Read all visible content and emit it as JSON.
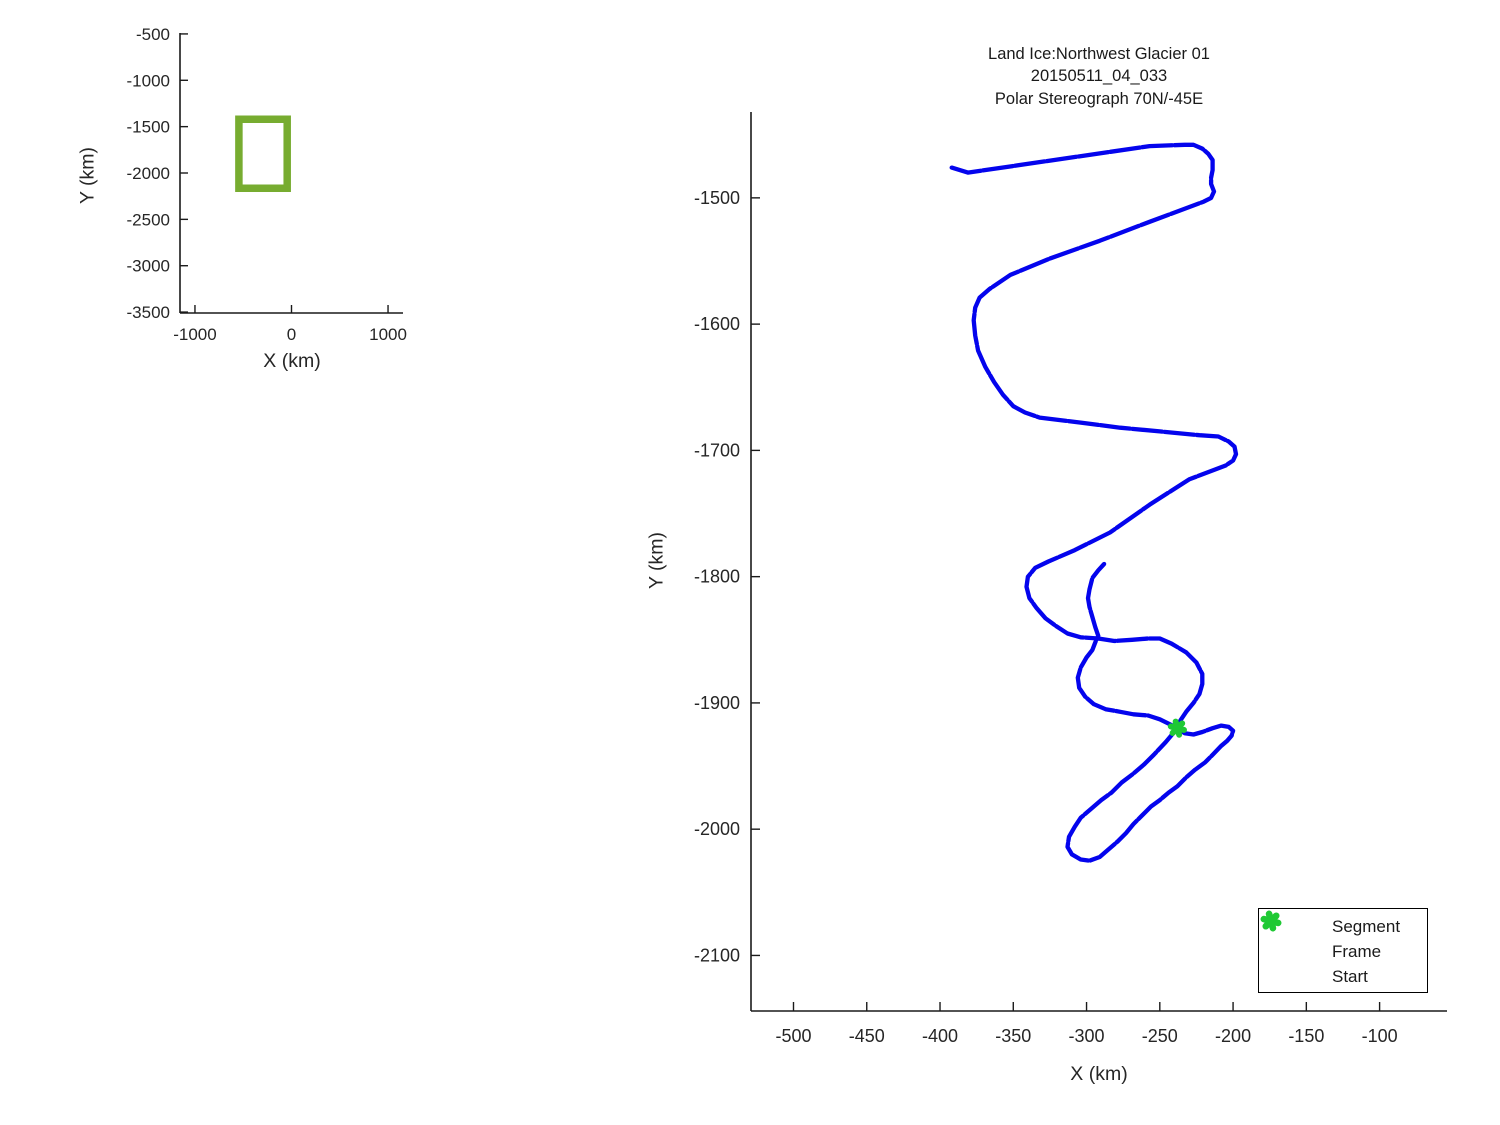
{
  "colors": {
    "track_blue": "#0404ed",
    "frame_red": "#ee0000",
    "start_green": "#1fc934",
    "coverage_green": "#77ac30",
    "axis": "#1a1a1a",
    "tick_text": "#262626"
  },
  "chart_data": [
    {
      "id": "overview",
      "type": "line",
      "xlabel": "X (km)",
      "ylabel": "Y (km)",
      "xlim": [
        -1155,
        1155
      ],
      "ylim": [
        -3510,
        -490
      ],
      "x_ticks": [
        "-1000",
        "0",
        "1000"
      ],
      "x_tick_vals": [
        -1000,
        0,
        1000
      ],
      "y_ticks": [
        "-500",
        "-1000",
        "-1500",
        "-2000",
        "-2500",
        "-3000",
        "-3500"
      ],
      "y_tick_vals": [
        -500,
        -1000,
        -1500,
        -2000,
        -2500,
        -3000,
        -3500
      ],
      "series": [
        {
          "name": "coverage-extent-box",
          "closed": true,
          "linewidth": 7.5,
          "points": [
            [
              -545,
              -1420
            ],
            [
              -45,
              -1420
            ],
            [
              -45,
              -2165
            ],
            [
              -545,
              -2165
            ]
          ]
        }
      ]
    },
    {
      "id": "flight-track",
      "type": "line",
      "title_lines": [
        "Land Ice:Northwest Glacier 01",
        "20150511_04_033",
        "Polar Stereograph 70N/-45E"
      ],
      "xlabel": "X (km)",
      "ylabel": "Y (km)",
      "xlim": [
        -529,
        -54
      ],
      "ylim": [
        -2144,
        -1432
      ],
      "x_ticks": [
        "-500",
        "-450",
        "-400",
        "-350",
        "-300",
        "-250",
        "-200",
        "-150",
        "-100"
      ],
      "x_tick_vals": [
        -500,
        -450,
        -400,
        -350,
        -300,
        -250,
        -200,
        -150,
        -100
      ],
      "y_ticks": [
        "-1500",
        "-1600",
        "-1700",
        "-1800",
        "-1900",
        "-2000",
        "-2100"
      ],
      "y_tick_vals": [
        -1500,
        -1600,
        -1700,
        -1800,
        -1900,
        -2000,
        -2100
      ],
      "start_km": [
        -238,
        -1920
      ],
      "track_km": [
        [
          -392,
          -1476
        ],
        [
          -381,
          -1480
        ],
        [
          -257,
          -1459
        ],
        [
          -233,
          -1458
        ],
        [
          -227,
          -1458
        ],
        [
          -221,
          -1461
        ],
        [
          -217,
          -1465
        ],
        [
          -214,
          -1470
        ],
        [
          -214,
          -1478
        ],
        [
          -215,
          -1484
        ],
        [
          -215,
          -1489
        ],
        [
          -213,
          -1495
        ],
        [
          -215,
          -1500
        ],
        [
          -220,
          -1503
        ],
        [
          -257,
          -1519
        ],
        [
          -291,
          -1534
        ],
        [
          -325,
          -1548
        ],
        [
          -352,
          -1561
        ],
        [
          -366,
          -1572
        ],
        [
          -373,
          -1579
        ],
        [
          -376,
          -1587
        ],
        [
          -377,
          -1597
        ],
        [
          -376,
          -1609
        ],
        [
          -374,
          -1621
        ],
        [
          -369,
          -1634
        ],
        [
          -363,
          -1646
        ],
        [
          -357,
          -1656
        ],
        [
          -350,
          -1665
        ],
        [
          -342,
          -1670
        ],
        [
          -332,
          -1674
        ],
        [
          -304,
          -1678
        ],
        [
          -277,
          -1682
        ],
        [
          -250,
          -1685
        ],
        [
          -223,
          -1688
        ],
        [
          -210,
          -1689
        ],
        [
          -203,
          -1693
        ],
        [
          -199,
          -1697
        ],
        [
          -198,
          -1703
        ],
        [
          -200,
          -1708
        ],
        [
          -205,
          -1712
        ],
        [
          -230,
          -1723
        ],
        [
          -257,
          -1743
        ],
        [
          -284,
          -1765
        ],
        [
          -308,
          -1779
        ],
        [
          -326,
          -1788
        ],
        [
          -335,
          -1793
        ],
        [
          -340,
          -1800
        ],
        [
          -341,
          -1808
        ],
        [
          -339,
          -1817
        ],
        [
          -334,
          -1825
        ],
        [
          -328,
          -1833
        ],
        [
          -321,
          -1839
        ],
        [
          -313,
          -1845
        ],
        [
          -304,
          -1848
        ],
        [
          -292,
          -1849
        ],
        [
          -281,
          -1851
        ],
        [
          -269,
          -1850
        ],
        [
          -258,
          -1849
        ],
        [
          -250,
          -1849
        ],
        [
          -242,
          -1853
        ],
        [
          -232,
          -1860
        ],
        [
          -225,
          -1868
        ],
        [
          -221,
          -1877
        ],
        [
          -221,
          -1885
        ],
        [
          -223,
          -1893
        ],
        [
          -227,
          -1900
        ],
        [
          -232,
          -1907
        ],
        [
          -236,
          -1914
        ],
        [
          -238,
          -1920
        ],
        [
          -246,
          -1931
        ],
        [
          -254,
          -1941
        ],
        [
          -261,
          -1949
        ],
        [
          -268,
          -1956
        ],
        [
          -276,
          -1963
        ],
        [
          -283,
          -1971
        ],
        [
          -290,
          -1977
        ],
        [
          -297,
          -1984
        ],
        [
          -304,
          -1991
        ],
        [
          -308,
          -1998
        ],
        [
          -312,
          -2006
        ],
        [
          -313,
          -2014
        ],
        [
          -310,
          -2020
        ],
        [
          -304,
          -2024
        ],
        [
          -298,
          -2025
        ],
        [
          -291,
          -2022
        ],
        [
          -285,
          -2016
        ],
        [
          -279,
          -2010
        ],
        [
          -273,
          -2003
        ],
        [
          -268,
          -1996
        ],
        [
          -262,
          -1989
        ],
        [
          -256,
          -1982
        ],
        [
          -250,
          -1977
        ],
        [
          -244,
          -1971
        ],
        [
          -238,
          -1966
        ],
        [
          -232,
          -1959
        ],
        [
          -226,
          -1953
        ],
        [
          -219,
          -1947
        ],
        [
          -213,
          -1940
        ],
        [
          -208,
          -1934
        ],
        [
          -204,
          -1930
        ],
        [
          -201,
          -1926
        ],
        [
          -200,
          -1922
        ],
        [
          -203,
          -1919
        ],
        [
          -208,
          -1918
        ],
        [
          -214,
          -1920
        ],
        [
          -221,
          -1923
        ],
        [
          -227,
          -1925
        ],
        [
          -233,
          -1924
        ],
        [
          -238,
          -1920
        ],
        [
          -243,
          -1917
        ],
        [
          -250,
          -1913
        ],
        [
          -258,
          -1910
        ],
        [
          -268,
          -1909
        ],
        [
          -277,
          -1907
        ],
        [
          -287,
          -1905
        ],
        [
          -295,
          -1901
        ],
        [
          -301,
          -1895
        ],
        [
          -305,
          -1888
        ],
        [
          -306,
          -1880
        ],
        [
          -304,
          -1872
        ],
        [
          -300,
          -1864
        ],
        [
          -296,
          -1858
        ],
        [
          -294,
          -1852
        ],
        [
          -292,
          -1847
        ],
        [
          -294,
          -1840
        ],
        [
          -296,
          -1832
        ],
        [
          -298,
          -1824
        ],
        [
          -299,
          -1817
        ],
        [
          -298,
          -1810
        ],
        [
          -296,
          -1801
        ],
        [
          -292,
          -1795
        ],
        [
          -288,
          -1790
        ]
      ]
    }
  ],
  "legend": {
    "items": [
      {
        "label": "Segment",
        "marker": "dot",
        "color": "#0404ed"
      },
      {
        "label": "Frame",
        "marker": "dot",
        "color": "#ee0000"
      },
      {
        "label": "Start",
        "marker": "burst",
        "color": "#1fc934"
      }
    ]
  }
}
